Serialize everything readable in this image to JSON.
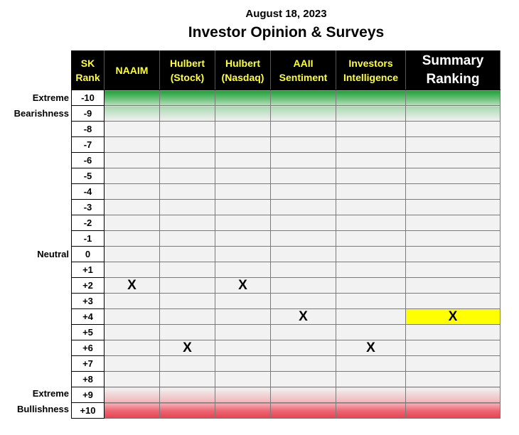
{
  "header": {
    "date": "August 18, 2023",
    "title": "Investor Opinion & Surveys"
  },
  "side_labels": {
    "extreme_top_1": "Extreme",
    "extreme_top_2": "Bearishness",
    "neutral": "Neutral",
    "extreme_bottom_1": "Extreme",
    "extreme_bottom_2": "Bullishness"
  },
  "chart_data": {
    "type": "table",
    "columns": [
      {
        "line1": "SK",
        "line2": "Rank"
      },
      {
        "line1": "NAAIM",
        "line2": ""
      },
      {
        "line1": "Hulbert",
        "line2": "(Stock)"
      },
      {
        "line1": "Hulbert",
        "line2": "(Nasdaq)"
      },
      {
        "line1": "AAII",
        "line2": "Sentiment"
      },
      {
        "line1": "Investors",
        "line2": "Intelligence"
      },
      {
        "line1": "Summary",
        "line2": "Ranking"
      }
    ],
    "ranks": [
      "-10",
      "-9",
      "-8",
      "-7",
      "-6",
      "-5",
      "-4",
      "-3",
      "-2",
      "-1",
      "0",
      "+1",
      "+2",
      "+3",
      "+4",
      "+5",
      "+6",
      "+7",
      "+8",
      "+9",
      "+10"
    ],
    "marker": "X",
    "positions": [
      {
        "column": "NAAIM",
        "rank": "+2"
      },
      {
        "column": "Hulbert (Stock)",
        "rank": "+6"
      },
      {
        "column": "Hulbert (Nasdaq)",
        "rank": "+2"
      },
      {
        "column": "AAII Sentiment",
        "rank": "+4"
      },
      {
        "column": "Investors Intelligence",
        "rank": "+6"
      },
      {
        "column": "Summary Ranking",
        "rank": "+4"
      }
    ],
    "highlight": {
      "column": "Summary Ranking",
      "rank": "+4",
      "color": "#ffff00"
    },
    "colors": {
      "bearish": "#1f9e35",
      "bullish": "#e8414f",
      "header_bg": "#000000",
      "header_text": "#ffff33",
      "summary_header_text": "#ffffff"
    }
  }
}
